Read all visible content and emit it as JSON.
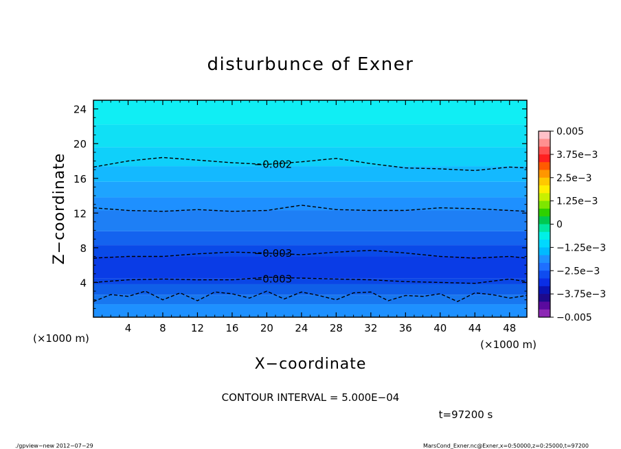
{
  "chart_data": {
    "type": "heatmap",
    "title": "disturbunce of Exner",
    "xlabel": "X−coordinate",
    "ylabel": "Z−coordinate",
    "xunit_left": "(×1000 m)",
    "xunit_right": "(×1000 m)",
    "xlim": [
      0,
      50
    ],
    "ylim": [
      0,
      25
    ],
    "xticks": [
      4,
      8,
      12,
      16,
      20,
      24,
      28,
      32,
      36,
      40,
      44,
      48
    ],
    "yticks": [
      4,
      8,
      12,
      16,
      20,
      24
    ],
    "bands": [
      {
        "zmin": 0.0,
        "zmax": 1.5,
        "value": -0.0025,
        "color": "#1e90ff"
      },
      {
        "zmin": 1.5,
        "zmax": 2.6,
        "value": -0.00275,
        "color": "#1877f0"
      },
      {
        "zmin": 2.6,
        "zmax": 3.8,
        "value": -0.003,
        "color": "#0f5fe8"
      },
      {
        "zmin": 3.8,
        "zmax": 4.5,
        "value": -0.0033,
        "color": "#0a46e6"
      },
      {
        "zmin": 4.5,
        "zmax": 7.0,
        "value": -0.0035,
        "color": "#0a3ce6"
      },
      {
        "zmin": 7.0,
        "zmax": 8.3,
        "value": -0.0033,
        "color": "#0a4ae8"
      },
      {
        "zmin": 8.3,
        "zmax": 9.9,
        "value": -0.003,
        "color": "#1463ef"
      },
      {
        "zmin": 9.9,
        "zmax": 12.3,
        "value": -0.00275,
        "color": "#1e7ff5"
      },
      {
        "zmin": 12.3,
        "zmax": 13.8,
        "value": -0.0025,
        "color": "#1e90ff"
      },
      {
        "zmin": 13.8,
        "zmax": 15.6,
        "value": -0.00235,
        "color": "#1ea4ff"
      },
      {
        "zmin": 15.6,
        "zmax": 17.4,
        "value": -0.0022,
        "color": "#14b9ff"
      },
      {
        "zmin": 17.4,
        "zmax": 19.6,
        "value": -0.002,
        "color": "#0fd0fa"
      },
      {
        "zmin": 19.6,
        "zmax": 22.2,
        "value": -0.0018,
        "color": "#10e0f5"
      },
      {
        "zmin": 22.2,
        "zmax": 25.0,
        "value": -0.0016,
        "color": "#10eef4"
      }
    ],
    "contours": [
      {
        "value": -0.002,
        "label": "−0.002",
        "x": [
          0,
          4,
          8,
          12,
          16,
          20,
          24,
          28,
          32,
          36,
          40,
          44,
          48,
          50
        ],
        "z": [
          17.3,
          18.0,
          18.4,
          18.1,
          17.8,
          17.6,
          17.9,
          18.3,
          17.7,
          17.2,
          17.1,
          16.9,
          17.3,
          17.2
        ],
        "label_x": 18.5
      },
      {
        "value": -0.0025,
        "label": "",
        "x": [
          0,
          4,
          8,
          12,
          16,
          20,
          24,
          28,
          32,
          36,
          40,
          44,
          48,
          50
        ],
        "z": [
          12.6,
          12.3,
          12.2,
          12.4,
          12.2,
          12.3,
          12.9,
          12.4,
          12.3,
          12.3,
          12.6,
          12.5,
          12.3,
          12.2
        ],
        "label_x": null
      },
      {
        "value": -0.003,
        "label": "−0.003",
        "x": [
          0,
          4,
          8,
          12,
          16,
          20,
          24,
          28,
          32,
          36,
          40,
          44,
          48,
          50
        ],
        "z": [
          6.8,
          7.0,
          7.0,
          7.3,
          7.5,
          7.4,
          7.2,
          7.5,
          7.7,
          7.4,
          7.0,
          6.8,
          7.0,
          6.8
        ],
        "label_x": 18.5
      },
      {
        "value": -0.003,
        "label": "−0.003",
        "x": [
          0,
          4,
          8,
          12,
          16,
          20,
          24,
          28,
          32,
          36,
          40,
          44,
          48,
          50
        ],
        "z": [
          4.0,
          4.3,
          4.4,
          4.3,
          4.3,
          4.6,
          4.5,
          4.4,
          4.3,
          4.1,
          4.0,
          3.9,
          4.4,
          4.1
        ],
        "label_x": 18.5
      },
      {
        "value": -0.0035,
        "label": "",
        "x": [
          0,
          2,
          4,
          6,
          8,
          10,
          12,
          14,
          16,
          18,
          20,
          22,
          24,
          26,
          28,
          30,
          32,
          34,
          36,
          38,
          40,
          42,
          44,
          46,
          48,
          50
        ],
        "z": [
          1.8,
          2.6,
          2.4,
          3.0,
          2.0,
          2.8,
          1.9,
          2.9,
          2.7,
          2.2,
          3.0,
          2.1,
          2.9,
          2.5,
          2.0,
          2.8,
          2.9,
          1.9,
          2.5,
          2.4,
          2.7,
          1.8,
          2.8,
          2.6,
          2.2,
          2.5
        ],
        "label_x": null
      }
    ],
    "colorbar": {
      "labels": [
        "0.005",
        "3.75e−3",
        "2.5e−3",
        "1.25e−3",
        "0",
        "−1.25e−3",
        "−2.5e−3",
        "−3.75e−3",
        "−0.005"
      ],
      "colors": [
        "#ffc0c8",
        "#ff9090",
        "#ff5050",
        "#ff2020",
        "#ff5a00",
        "#ff9600",
        "#ffc800",
        "#ffee00",
        "#c8f000",
        "#7ee600",
        "#2ed000",
        "#00c850",
        "#00e6a0",
        "#00f0e6",
        "#00d8ff",
        "#00baff",
        "#1e90ff",
        "#1e6fff",
        "#0f4cf0",
        "#0a2ee6",
        "#0a14b4",
        "#1e0a8c",
        "#5a0a9e",
        "#8c28b4"
      ]
    },
    "annotation": "CONTOUR INTERVAL = 5.000E−04",
    "time_label": "t=97200 s"
  },
  "footer": {
    "left": "./gpview−new   2012−07−29",
    "right": "MarsCond_Exner.nc@Exner,x=0:50000,z=0:25000,t=97200"
  }
}
